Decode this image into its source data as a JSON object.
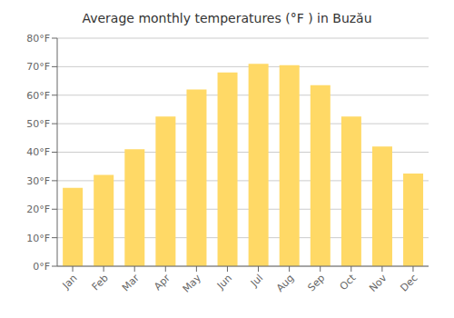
{
  "chart_data": {
    "type": "bar",
    "title": "Average monthly temperatures (°F ) in Buzău",
    "categories": [
      "Jan",
      "Feb",
      "Mar",
      "Apr",
      "May",
      "Jun",
      "Jul",
      "Aug",
      "Sep",
      "Oct",
      "Nov",
      "Dec"
    ],
    "values": [
      27.5,
      32,
      41,
      52.5,
      62,
      68,
      71,
      70.5,
      63.5,
      52.5,
      42,
      32.5
    ],
    "color": "#FFD966",
    "ylim": [
      0,
      80
    ],
    "yticks": [
      {
        "value": 0,
        "label": "0°F"
      },
      {
        "value": 10,
        "label": "10°F"
      },
      {
        "value": 20,
        "label": "20°F"
      },
      {
        "value": 30,
        "label": "30°F"
      },
      {
        "value": 40,
        "label": "40°F"
      },
      {
        "value": 50,
        "label": "50°F"
      },
      {
        "value": 60,
        "label": "60°F"
      },
      {
        "value": 70,
        "label": "70°F"
      },
      {
        "value": 80,
        "label": "80°F"
      }
    ],
    "grid": true
  }
}
